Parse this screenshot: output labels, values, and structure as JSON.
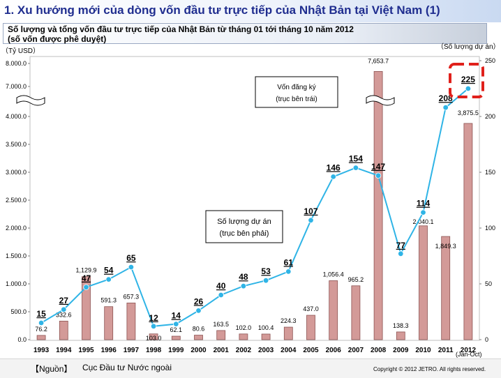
{
  "header": {
    "title": "1. Xu hướng mới của dòng vốn đầu tư trực tiếp của Nhật Bản tại Việt Nam (1)",
    "subtitle_line1": "Số lượng và tổng vốn đầu tư trực tiếp của Nhật Bản từ tháng 01 tới tháng 10 năm 2012",
    "subtitle_line2": "(số vốn được phê duyệt)"
  },
  "footer": {
    "source_label": "【Nguồn】",
    "source_value": "Cục Đầu tư Nước ngoài",
    "copyright": "Copyright © 2012 JETRO. All rights reserved."
  },
  "chart_data": {
    "type": "bar",
    "categories": [
      "1993",
      "1994",
      "1995",
      "1996",
      "1997",
      "1998",
      "1999",
      "2000",
      "2001",
      "2002",
      "2003",
      "2004",
      "2005",
      "2006",
      "2007",
      "2008",
      "2009",
      "2010",
      "2011",
      "2012"
    ],
    "category_note": "(Jan-Oct)",
    "series": [
      {
        "type": "bar",
        "axis": "left",
        "values": [
          76.2,
          332.6,
          1129.9,
          591.3,
          657.3,
          103.0,
          62.1,
          80.6,
          163.5,
          102.0,
          100.4,
          224.3,
          437.0,
          1056.4,
          965.2,
          7653.7,
          138.3,
          2040.1,
          1849.3,
          3875.5
        ],
        "labels": [
          "76.2",
          "332.6",
          "1,129.9",
          "591.3",
          "657.3",
          "103.0",
          "62.1",
          "80.6",
          "163.5",
          "102.0",
          "100.4",
          "224.3",
          "437.0",
          "1,056.4",
          "965.2",
          "7,653.7",
          "138.3",
          "2,040.1",
          "1,849.3",
          "3,875.5"
        ],
        "color": "#d39a98"
      },
      {
        "type": "line",
        "axis": "right",
        "values": [
          15,
          27,
          47,
          54,
          65,
          12,
          14,
          26,
          40,
          48,
          53,
          61,
          107,
          146,
          154,
          147,
          77,
          114,
          208,
          225
        ],
        "color": "#2fb4e6"
      }
    ],
    "left_axis": {
      "unit": "（Tỷ USD）",
      "ylim": [
        0,
        4000
      ],
      "broken": true,
      "break_top_value": 7000,
      "top_max": 8000,
      "ticks": [
        "0.0",
        "500.0",
        "1.000.0",
        "1.500.0",
        "2.000.0",
        "2.500.0",
        "3.000.0",
        "3.500.0",
        "4.000.0",
        "7.000.0",
        "8.000.0"
      ]
    },
    "right_axis": {
      "unit": "（Số lượng dự án）",
      "ylim": [
        0,
        250
      ],
      "ticks": [
        "0",
        "50",
        "100",
        "150",
        "200",
        "250"
      ]
    },
    "annotations": [
      {
        "text1": "Vốn đăng ký",
        "text2": "(trục bên trái)"
      },
      {
        "text1": "Số lượng dự án",
        "text2": "(trục bên phải)"
      }
    ],
    "grid": false,
    "highlight_last": true
  }
}
